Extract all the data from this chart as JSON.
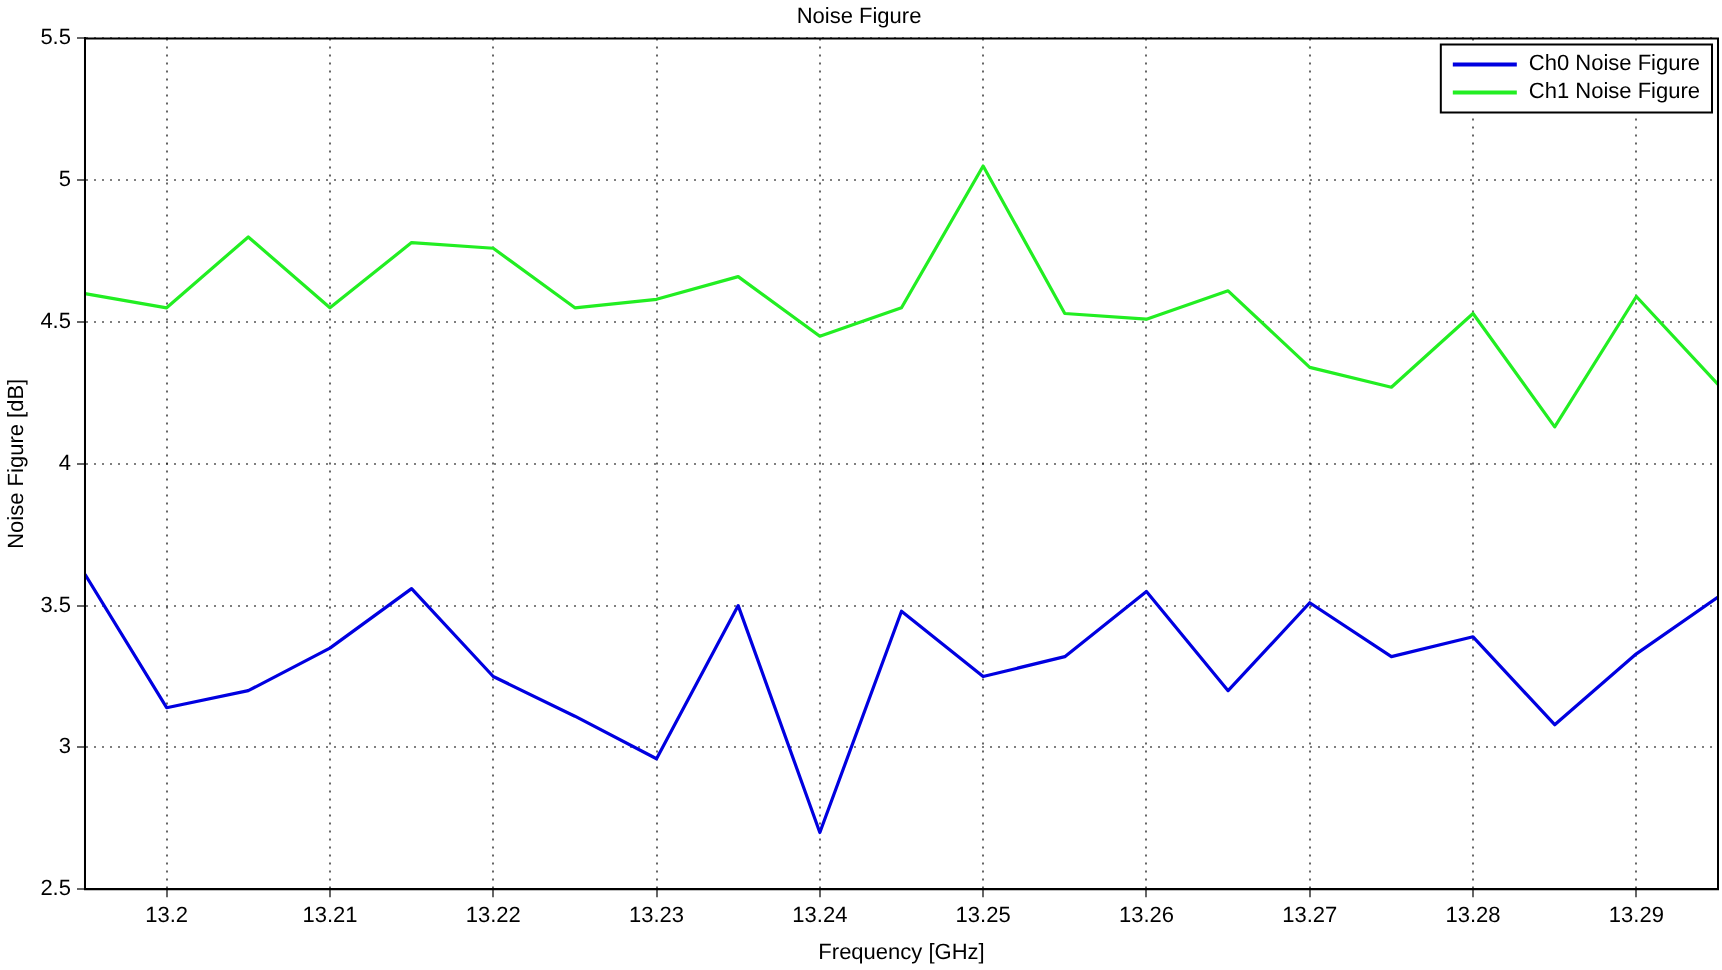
{
  "chart_data": {
    "type": "line",
    "title": "Noise Figure",
    "xlabel": "Frequency [GHz]",
    "ylabel": "Noise Figure [dB]",
    "x": [
      13.195,
      13.2,
      13.205,
      13.21,
      13.215,
      13.22,
      13.225,
      13.23,
      13.235,
      13.24,
      13.245,
      13.25,
      13.255,
      13.26,
      13.265,
      13.27,
      13.275,
      13.28,
      13.285,
      13.29,
      13.295
    ],
    "series": [
      {
        "name": "Ch0 Noise Figure",
        "color": "#0000e0",
        "values": [
          3.61,
          3.14,
          3.2,
          3.35,
          3.56,
          3.25,
          3.11,
          2.96,
          3.5,
          2.7,
          3.48,
          3.25,
          3.32,
          3.55,
          3.2,
          3.51,
          3.32,
          3.39,
          3.08,
          3.33,
          3.53
        ]
      },
      {
        "name": "Ch1 Noise Figure",
        "color": "#22ee22",
        "values": [
          4.6,
          4.55,
          4.8,
          4.55,
          4.78,
          4.76,
          4.55,
          4.58,
          4.66,
          4.45,
          4.55,
          5.05,
          4.53,
          4.51,
          4.61,
          4.34,
          4.27,
          4.53,
          4.13,
          4.59,
          4.28
        ]
      }
    ],
    "xlim": [
      13.195,
      13.295
    ],
    "xticks": [
      13.2,
      13.21,
      13.22,
      13.23,
      13.24,
      13.25,
      13.26,
      13.27,
      13.28,
      13.29
    ],
    "ylim": [
      2.5,
      5.5
    ],
    "yticks": [
      2.5,
      3,
      3.5,
      4,
      4.5,
      5,
      5.5
    ],
    "grid": true,
    "legend": "top right",
    "marker": "none",
    "line_style": "solid"
  }
}
